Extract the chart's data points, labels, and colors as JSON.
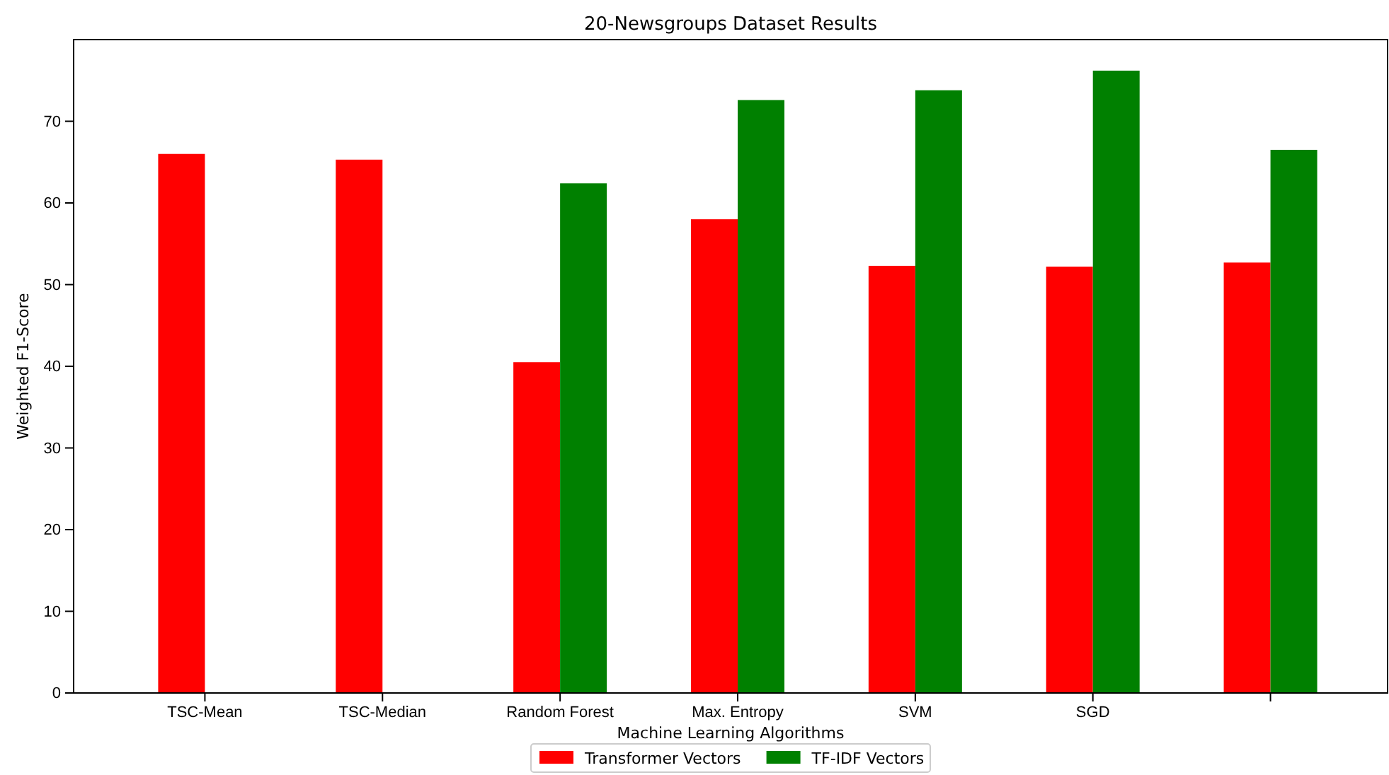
{
  "chart_data": {
    "type": "bar",
    "title": "20-Newsgroups Dataset Results",
    "xlabel": "Machine Learning Algorithms",
    "ylabel": "Weighted F1-Score",
    "categories": [
      "TSC-Mean",
      "TSC-Median",
      "Random Forest",
      "Max. Entropy",
      "SVM",
      "SGD",
      null
    ],
    "series": [
      {
        "name": "Transformer Vectors",
        "color": "#ff0000",
        "values": [
          66.0,
          65.3,
          40.5,
          58.0,
          52.3,
          52.2,
          52.7
        ]
      },
      {
        "name": "TF-IDF Vectors",
        "color": "#008000",
        "values": [
          null,
          null,
          62.4,
          72.6,
          73.8,
          76.2,
          66.5
        ]
      }
    ],
    "ylim": [
      0,
      80
    ],
    "yticks": [
      0,
      10,
      20,
      30,
      40,
      50,
      60,
      70
    ],
    "grid": false,
    "legend": "bottom"
  }
}
